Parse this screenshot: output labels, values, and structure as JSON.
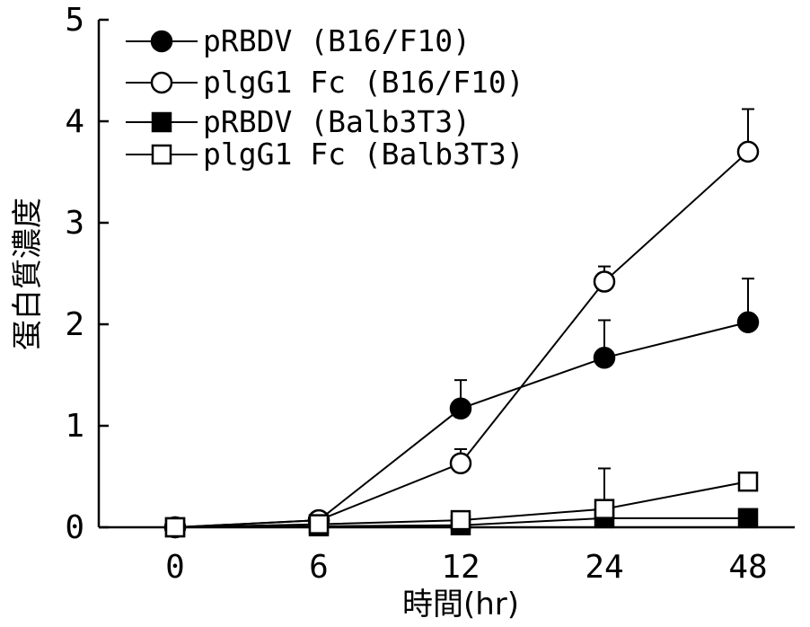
{
  "chart_data": {
    "type": "line",
    "xlabel": "時間(hr)",
    "ylabel": "蛋白質濃度",
    "x_categories": [
      "0",
      "6",
      "12",
      "24",
      "48"
    ],
    "ylim": [
      0,
      5
    ],
    "y_ticks": [
      "0",
      "1",
      "2",
      "3",
      "4",
      "5"
    ],
    "legend_position": "top-left",
    "grid": false,
    "series": [
      {
        "name": "pRBDV (B16/F10)",
        "marker": "filled-circle",
        "values": [
          0.0,
          0.07,
          1.17,
          1.67,
          2.02
        ],
        "errors": [
          0,
          0,
          0.28,
          0.37,
          0.43
        ]
      },
      {
        "name": "plgG1 Fc (B16/F10)",
        "marker": "open-circle",
        "values": [
          0.0,
          0.07,
          0.63,
          2.42,
          3.7
        ],
        "errors": [
          0,
          0,
          0.14,
          0.15,
          0.42
        ]
      },
      {
        "name": "pRBDV (Balb3T3)",
        "marker": "filled-square",
        "values": [
          0.0,
          0.01,
          0.02,
          0.09,
          0.09
        ],
        "errors": [
          0,
          0,
          0,
          0,
          0
        ]
      },
      {
        "name": "plgG1 Fc (Balb3T3)",
        "marker": "open-square",
        "values": [
          0.0,
          0.03,
          0.07,
          0.18,
          0.45
        ],
        "errors": [
          0,
          0,
          0,
          0.4,
          0
        ]
      }
    ]
  }
}
